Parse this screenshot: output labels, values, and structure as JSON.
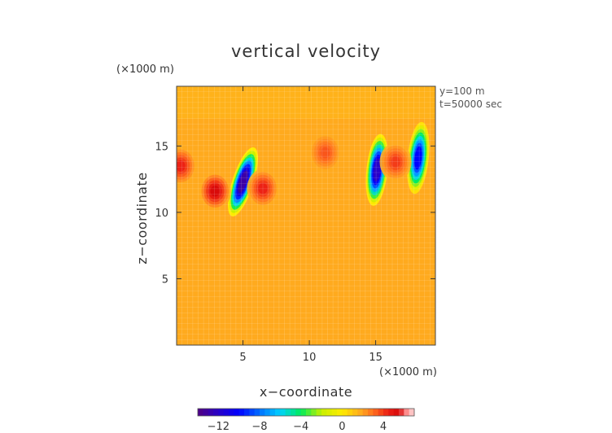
{
  "chart_data": {
    "type": "heatmap",
    "title": "vertical velocity",
    "xlabel": "x−coordinate",
    "ylabel": "z−coordinate",
    "x_unit": "(×1000 m)",
    "z_unit": "(×1000 m)",
    "xlim": [
      0,
      19.5
    ],
    "ylim": [
      0,
      19.5
    ],
    "x_ticks": [
      5,
      10,
      15
    ],
    "y_ticks": [
      5,
      10,
      15
    ],
    "annotations": [
      "y=100 m",
      "t=50000 sec"
    ],
    "colorbar": {
      "min": -14,
      "max": 7,
      "ticks": [
        -12,
        -8,
        -4,
        0,
        4
      ],
      "tick_labels": [
        "−12",
        "−8",
        "−4",
        "0",
        "4"
      ]
    },
    "background_value": 1.8,
    "features": [
      {
        "kind": "downdraft",
        "x": 5.0,
        "z": 12.3,
        "min_value": -13
      },
      {
        "kind": "downdraft",
        "x": 15.1,
        "z": 13.2,
        "min_value": -12
      },
      {
        "kind": "downdraft",
        "x": 18.2,
        "z": 14.1,
        "min_value": -10
      },
      {
        "kind": "updraft",
        "x": 0.3,
        "z": 13.5,
        "max_value": 4.5
      },
      {
        "kind": "updraft",
        "x": 2.9,
        "z": 11.6,
        "max_value": 5.5
      },
      {
        "kind": "updraft",
        "x": 6.5,
        "z": 11.8,
        "max_value": 4.5
      },
      {
        "kind": "updraft",
        "x": 11.2,
        "z": 14.5,
        "max_value": 3.5
      },
      {
        "kind": "updraft",
        "x": 16.5,
        "z": 13.8,
        "max_value": 4
      }
    ]
  }
}
